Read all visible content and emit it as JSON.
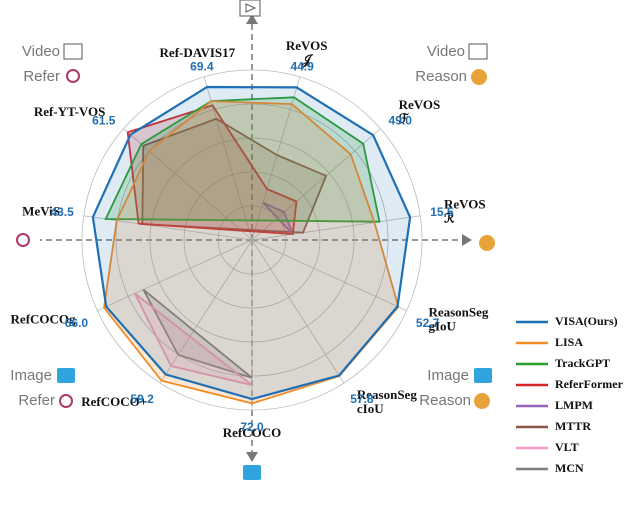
{
  "chart_data": {
    "type": "radar",
    "categories": [
      [
        "ReVOS",
        "𝒥"
      ],
      [
        "ReVOS",
        "ℱ"
      ],
      [
        "ReVOS",
        "ℛ"
      ],
      [
        "ReasonSeg",
        "gIoU"
      ],
      [
        "ReasonSeg",
        "cIoU"
      ],
      [
        "RefCOCO"
      ],
      [
        "RefCOCO+"
      ],
      [
        "RefCOCOg"
      ],
      [
        "MeViS"
      ],
      [
        "Ref-YT-VOS"
      ],
      [
        "Ref-DAVIS17"
      ]
    ],
    "rlim": [
      [
        0,
        48
      ],
      [
        0,
        52
      ],
      [
        0,
        16.5
      ],
      [
        0,
        56
      ],
      [
        0,
        61
      ],
      [
        0,
        77
      ],
      [
        0,
        63
      ],
      [
        0,
        70
      ],
      [
        0,
        46
      ],
      [
        0,
        65
      ],
      [
        0,
        74
      ]
    ],
    "series": [
      {
        "name": "VISA(Ours)",
        "color": "#1f6fb5",
        "values": [
          44.9,
          49.0,
          15.5,
          52.7,
          57.8,
          72.0,
          59.2,
          66.0,
          43.5,
          61.5,
          69.4
        ],
        "value_labels": [
          "44.9",
          "49.0",
          "15.5",
          "52.7",
          "57.8",
          "72.0",
          "59.2",
          "66.0",
          "43.5",
          "61.5",
          "69.4"
        ]
      },
      {
        "name": "LISA",
        "color": "#f28c28",
        "values": [
          40,
          40,
          12,
          53,
          58,
          74,
          62,
          67,
          37,
          52,
          63
        ]
      },
      {
        "name": "TrackGPT",
        "color": "#2ca02c",
        "values": [
          42,
          45,
          12.5,
          null,
          null,
          null,
          null,
          null,
          40,
          56,
          63
        ]
      },
      {
        "name": "ReferFormer",
        "color": "#d62728",
        "values": [
          15,
          18,
          4,
          null,
          null,
          null,
          null,
          null,
          31,
          62.9,
          61.1
        ]
      },
      {
        "name": "LMPM",
        "color": "#9467bd",
        "values": [
          11,
          13,
          4,
          null,
          null,
          null,
          null,
          null,
          null,
          null,
          null
        ]
      },
      {
        "name": "MTTR",
        "color": "#8c564b",
        "values": [
          25,
          30,
          5,
          null,
          null,
          null,
          null,
          null,
          30,
          55,
          55
        ]
      },
      {
        "name": "VLT",
        "color": "#f49ac8",
        "values": [
          null,
          null,
          null,
          null,
          null,
          65.7,
          55.5,
          53,
          null,
          null,
          null
        ]
      },
      {
        "name": "MCN",
        "color": "#7f7f7f",
        "values": [
          null,
          null,
          null,
          null,
          null,
          62.4,
          50.6,
          49.2,
          null,
          null,
          null
        ]
      }
    ],
    "annotations": [
      "Video",
      "Refer",
      "Video",
      "Reason",
      "Image",
      "Refer",
      "Image",
      "Reason"
    ]
  }
}
